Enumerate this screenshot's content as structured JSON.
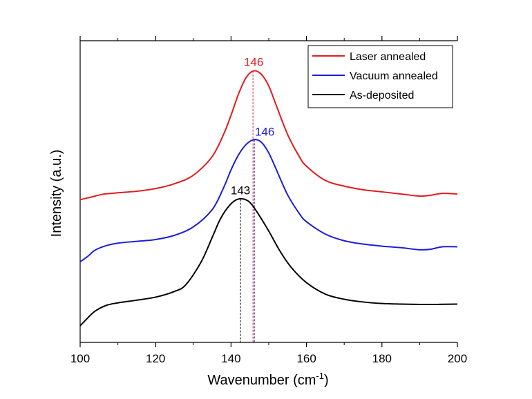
{
  "chart_data": {
    "type": "line",
    "xlabel": "Wavenumber (cm",
    "xlabel_superscript": "-1",
    "xlabel_suffix": ")",
    "ylabel": "Intensity (a.u.)",
    "xlim": [
      100,
      200
    ],
    "ylim": [
      0,
      100
    ],
    "x_ticks": [
      100,
      120,
      140,
      160,
      180,
      200
    ],
    "x_tick_labels": [
      "100",
      "120",
      "140",
      "160",
      "180",
      "200"
    ],
    "y_ticks_labeled": false,
    "grid": false,
    "legend_position": "top-right",
    "series": [
      {
        "name": "Laser annealed",
        "color": "#e41a1c",
        "points": [
          [
            100,
            47.3
          ],
          [
            103,
            48.2
          ],
          [
            106,
            49.1
          ],
          [
            110,
            49.6
          ],
          [
            115,
            50.1
          ],
          [
            120,
            51.0
          ],
          [
            125,
            52.6
          ],
          [
            130,
            55.4
          ],
          [
            135,
            61.6
          ],
          [
            138,
            68.9
          ],
          [
            140,
            75.3
          ],
          [
            142,
            82.4
          ],
          [
            144,
            87.8
          ],
          [
            146,
            90.0
          ],
          [
            148,
            88.9
          ],
          [
            150,
            85.0
          ],
          [
            152,
            78.5
          ],
          [
            155,
            68.9
          ],
          [
            158,
            61.8
          ],
          [
            160,
            58.4
          ],
          [
            165,
            53.7
          ],
          [
            170,
            51.8
          ],
          [
            175,
            50.6
          ],
          [
            180,
            49.9
          ],
          [
            185,
            49.2
          ],
          [
            190,
            48.5
          ],
          [
            193,
            48.8
          ],
          [
            196,
            49.4
          ],
          [
            200,
            49.2
          ]
        ],
        "peak_x": 146,
        "peak_label": "146"
      },
      {
        "name": "Vacuum annealed",
        "color": "#1c1cd6",
        "points": [
          [
            100,
            26.7
          ],
          [
            102,
            28.5
          ],
          [
            104,
            30.6
          ],
          [
            107,
            32.1
          ],
          [
            110,
            32.9
          ],
          [
            115,
            33.5
          ],
          [
            120,
            34.1
          ],
          [
            125,
            35.5
          ],
          [
            130,
            38.3
          ],
          [
            135,
            44.0
          ],
          [
            138,
            51.2
          ],
          [
            140,
            57.2
          ],
          [
            142,
            62.2
          ],
          [
            144,
            65.6
          ],
          [
            146,
            67.2
          ],
          [
            148,
            66.4
          ],
          [
            150,
            62.8
          ],
          [
            152,
            57.3
          ],
          [
            155,
            48.9
          ],
          [
            158,
            42.9
          ],
          [
            160,
            40.0
          ],
          [
            165,
            35.9
          ],
          [
            170,
            33.7
          ],
          [
            175,
            32.6
          ],
          [
            180,
            31.9
          ],
          [
            185,
            31.4
          ],
          [
            190,
            30.7
          ],
          [
            193,
            30.9
          ],
          [
            196,
            31.7
          ],
          [
            200,
            31.7
          ]
        ],
        "peak_x": 146,
        "peak_label": "146"
      },
      {
        "name": "As-deposited",
        "color": "#000000",
        "points": [
          [
            100,
            5.5
          ],
          [
            102,
            8.1
          ],
          [
            104,
            10.4
          ],
          [
            107,
            12.3
          ],
          [
            110,
            13.1
          ],
          [
            115,
            14.0
          ],
          [
            120,
            15.0
          ],
          [
            125,
            16.9
          ],
          [
            128,
            19.1
          ],
          [
            132,
            26.5
          ],
          [
            135,
            34.8
          ],
          [
            137,
            40.5
          ],
          [
            139,
            44.5
          ],
          [
            141,
            47.0
          ],
          [
            143,
            47.6
          ],
          [
            145,
            46.4
          ],
          [
            147,
            43.0
          ],
          [
            150,
            36.9
          ],
          [
            153,
            30.2
          ],
          [
            156,
            24.8
          ],
          [
            160,
            19.8
          ],
          [
            165,
            16.0
          ],
          [
            170,
            14.3
          ],
          [
            175,
            13.4
          ],
          [
            180,
            12.9
          ],
          [
            185,
            12.7
          ],
          [
            190,
            12.6
          ],
          [
            195,
            12.6
          ],
          [
            200,
            12.7
          ]
        ],
        "peak_x": 142.5,
        "peak_label": "143"
      }
    ]
  }
}
